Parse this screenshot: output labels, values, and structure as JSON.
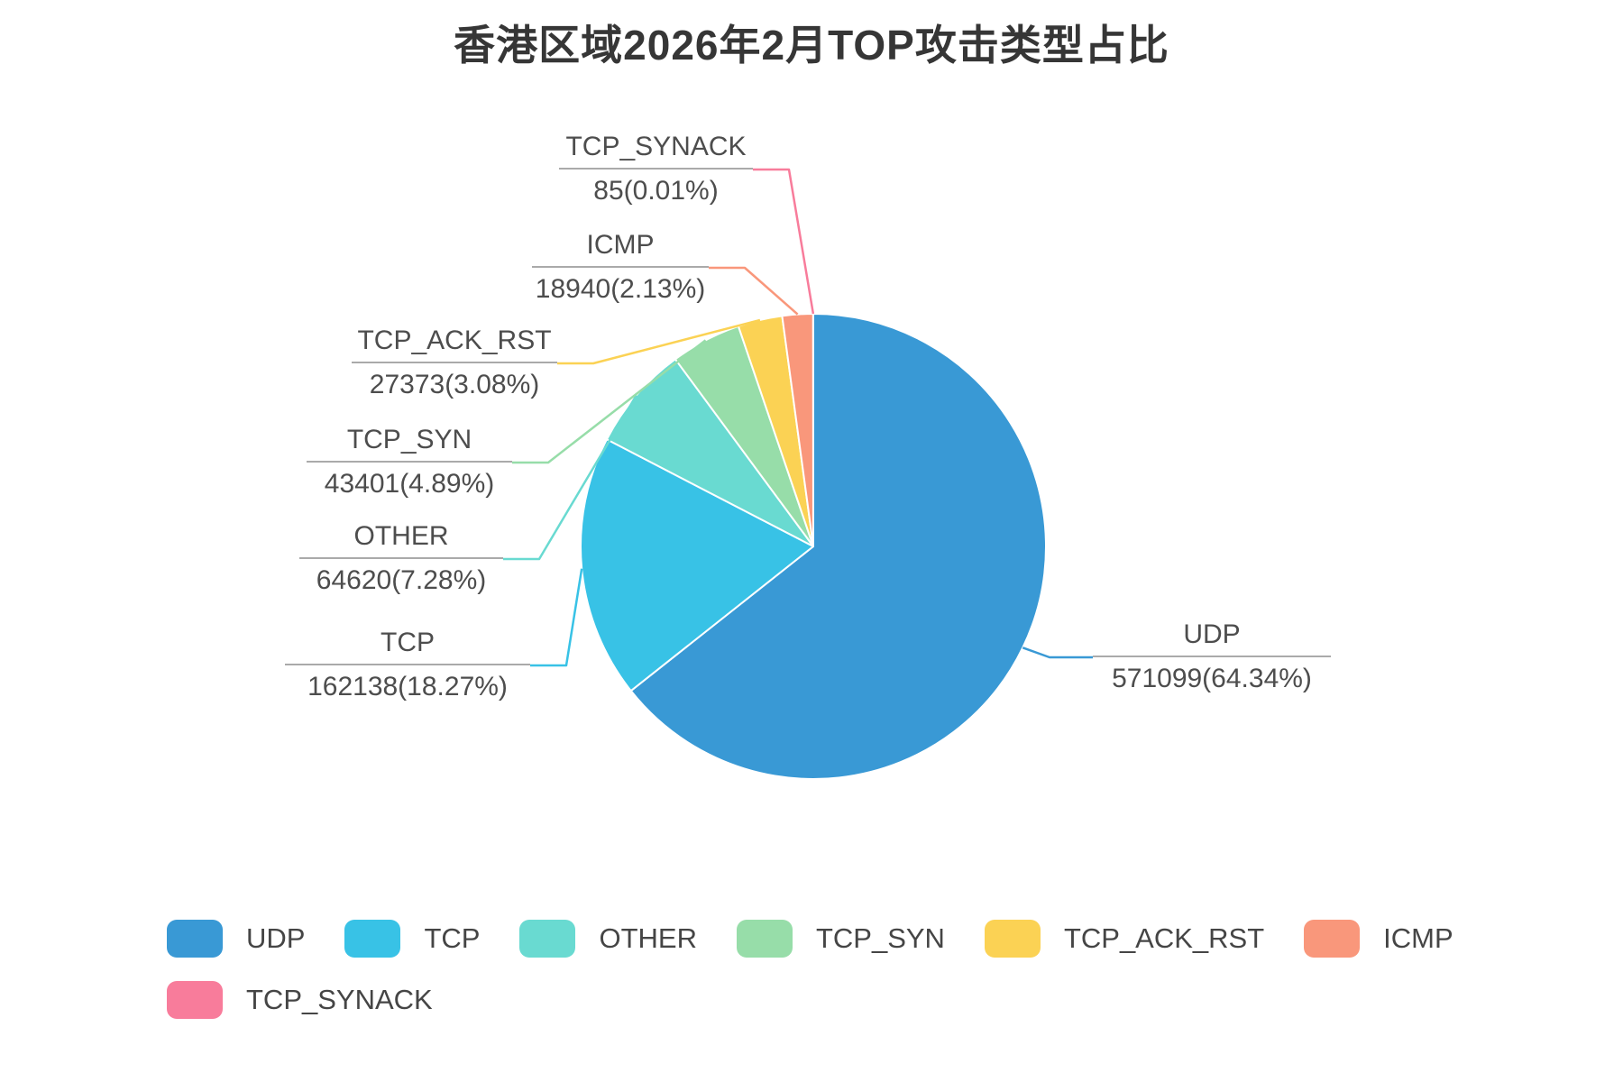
{
  "title": "香港区域2026年2月TOP攻击类型占比",
  "chart_data": {
    "type": "pie",
    "title": "香港区域2026年2月TOP攻击类型占比",
    "legend_position": "bottom",
    "start_angle_deg": 90,
    "clockwise": true,
    "label_format": "{name} / {value}({pct}%)",
    "series": [
      {
        "name": "UDP",
        "value": 571099,
        "pct": "64.34",
        "color": "#3999D5"
      },
      {
        "name": "TCP",
        "value": 162138,
        "pct": "18.27",
        "color": "#38C2E6"
      },
      {
        "name": "OTHER",
        "value": 64620,
        "pct": "7.28",
        "color": "#69DAD1"
      },
      {
        "name": "TCP_SYN",
        "value": 43401,
        "pct": "4.89",
        "color": "#97DDA9"
      },
      {
        "name": "TCP_ACK_RST",
        "value": 27373,
        "pct": "3.08",
        "color": "#FBD254"
      },
      {
        "name": "ICMP",
        "value": 18940,
        "pct": "2.13",
        "color": "#F9977B"
      },
      {
        "name": "TCP_SYNACK",
        "value": 85,
        "pct": "0.01",
        "color": "#F87C9B"
      }
    ],
    "colors": {
      "leader_underline": "#aaaaaa",
      "label_text": "#4d4d4d",
      "title_text": "#363636",
      "background": "#ffffff"
    }
  }
}
